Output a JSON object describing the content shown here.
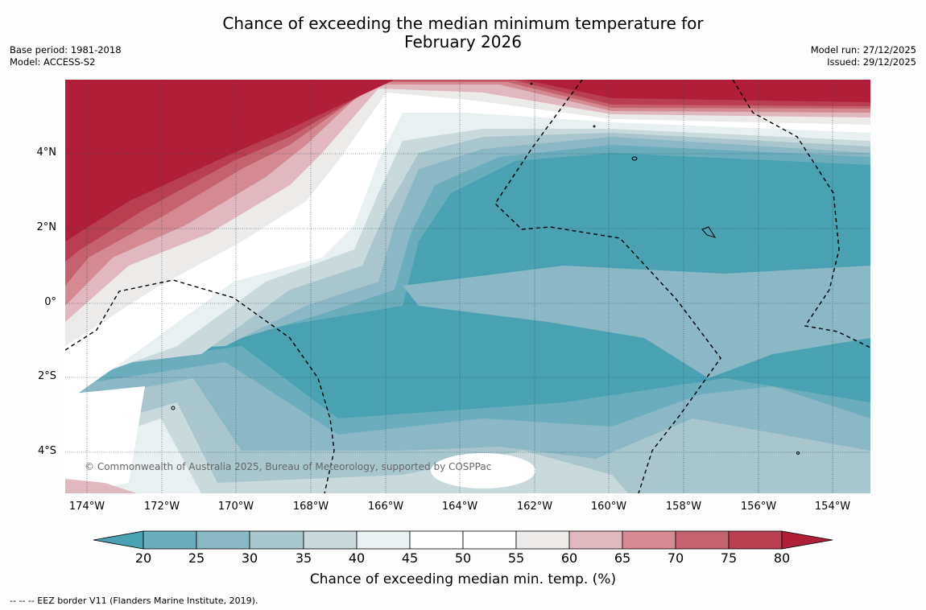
{
  "title": {
    "line1": "Chance of exceeding the median minimum temperature for",
    "line2": "February 2026"
  },
  "meta_left": {
    "base_period": "Base period: 1981-2018",
    "model": "Model: ACCESS-S2"
  },
  "meta_right": {
    "model_run": "Model run: 27/12/2025",
    "issued": "Issued: 29/12/2025"
  },
  "map": {
    "lat_labels": [
      "4°N",
      "2°N",
      "0°",
      "2°S",
      "4°S"
    ],
    "lon_labels": [
      "174°W",
      "172°W",
      "170°W",
      "168°W",
      "166°W",
      "164°W",
      "162°W",
      "160°W",
      "158°W",
      "156°W",
      "154°W"
    ],
    "copyright": "© Commonwealth of Australia 2025, Bureau of Meteorology, supported by COSPPac"
  },
  "colorbar": {
    "ticks": [
      "20",
      "25",
      "30",
      "35",
      "40",
      "45",
      "50",
      "55",
      "60",
      "65",
      "70",
      "75",
      "80"
    ],
    "colors": [
      "#4aa1b4",
      "#6badbd",
      "#8ab8c4",
      "#a9c6cd",
      "#c9d9dc",
      "#e9f0f1",
      "#ffffff",
      "#ffffff",
      "#ecebea",
      "#e1b8bf",
      "#d48993",
      "#c5626f",
      "#b93e52",
      "#b01e3a"
    ],
    "title": "Chance of exceeding median min. temp. (%)"
  },
  "legend_footer": "--  --  -- EEZ border V11 (Flanders Marine Institute, 2019)."
}
